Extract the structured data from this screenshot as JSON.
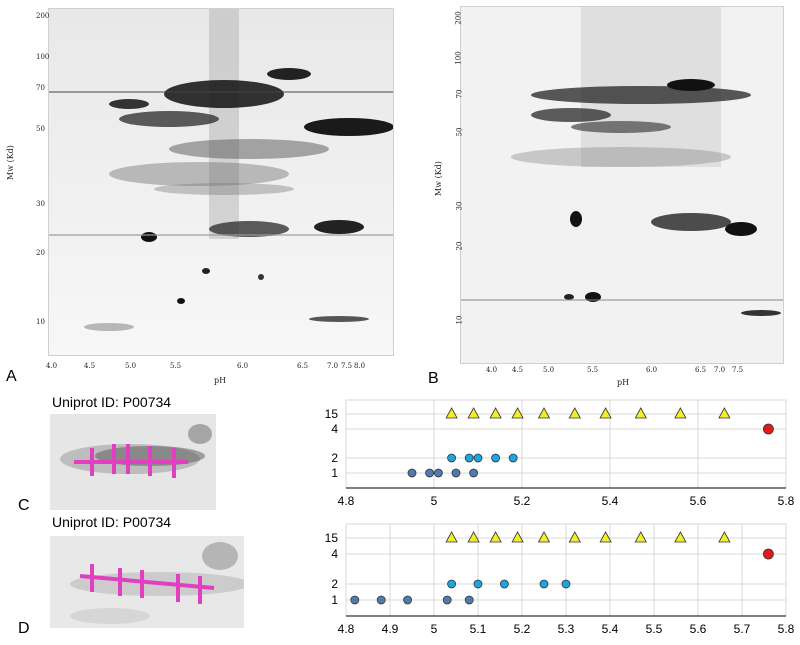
{
  "panels": {
    "A": {
      "letter": "A",
      "y_axis_title": "Mw (Kd)",
      "x_axis_title": "pH",
      "y_ticks": [
        "200",
        "100",
        "70",
        "50",
        "30",
        "20",
        "10"
      ],
      "x_ticks": [
        "4.0",
        "4.5",
        "5.0",
        "5.5",
        "6.0",
        "6.5",
        "7.0",
        "7.5",
        "8.0"
      ]
    },
    "B": {
      "letter": "B",
      "y_axis_title": "Mw (Kd)",
      "x_axis_title": "pH",
      "y_ticks": [
        "200",
        "100",
        "70",
        "50",
        "30",
        "20",
        "10"
      ],
      "x_ticks": [
        "4.0",
        "4.5",
        "5.0",
        "5.5",
        "6.0",
        "6.5",
        "7.0",
        "7.5"
      ]
    },
    "C": {
      "letter": "C",
      "uniprot_label": "Uniprot ID: P00734",
      "marker_color": "#e040c0"
    },
    "D": {
      "letter": "D",
      "uniprot_label": "Uniprot ID: P00734",
      "marker_color": "#e040c0"
    }
  },
  "chart_data": [
    {
      "panel": "C",
      "type": "scatter",
      "xlim": [
        4.8,
        5.8
      ],
      "x_ticks": [
        "4.8",
        "5",
        "5.2",
        "5.4",
        "5.6",
        "5.8"
      ],
      "y_categories": [
        "1",
        "2",
        "4",
        "15"
      ],
      "grid": true,
      "series": [
        {
          "level": "1",
          "marker": "circle",
          "color": "#4f7bb0",
          "x": [
            4.95,
            4.99,
            5.01,
            5.05,
            5.09
          ]
        },
        {
          "level": "2",
          "marker": "circle",
          "color": "#1aa6e0",
          "x": [
            5.04,
            5.08,
            5.1,
            5.14,
            5.18
          ]
        },
        {
          "level": "4",
          "marker": "circle",
          "color": "#e41a1a",
          "x": [
            5.76
          ]
        },
        {
          "level": "15",
          "marker": "triangle",
          "color": "#f2ee2a",
          "x": [
            5.04,
            5.09,
            5.14,
            5.19,
            5.25,
            5.32,
            5.39,
            5.47,
            5.56,
            5.66
          ]
        }
      ]
    },
    {
      "panel": "D",
      "type": "scatter",
      "xlim": [
        4.8,
        5.8
      ],
      "x_ticks": [
        "4.8",
        "4.9",
        "5",
        "5.1",
        "5.2",
        "5.3",
        "5.4",
        "5.5",
        "5.6",
        "5.7",
        "5.8"
      ],
      "y_categories": [
        "1",
        "2",
        "4",
        "15"
      ],
      "grid": true,
      "series": [
        {
          "level": "1",
          "marker": "circle",
          "color": "#4f7bb0",
          "x": [
            4.82,
            4.88,
            4.94,
            5.03,
            5.08
          ]
        },
        {
          "level": "2",
          "marker": "circle",
          "color": "#1aa6e0",
          "x": [
            5.04,
            5.1,
            5.16,
            5.25,
            5.3
          ]
        },
        {
          "level": "4",
          "marker": "circle",
          "color": "#e41a1a",
          "x": [
            5.76
          ]
        },
        {
          "level": "15",
          "marker": "triangle",
          "color": "#f2ee2a",
          "x": [
            5.04,
            5.09,
            5.14,
            5.19,
            5.25,
            5.32,
            5.39,
            5.47,
            5.56,
            5.66
          ]
        }
      ]
    }
  ]
}
